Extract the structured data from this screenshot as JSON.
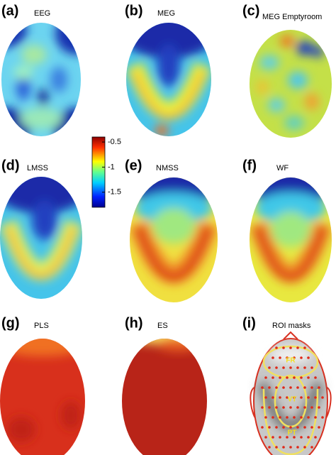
{
  "panels": [
    {
      "letter": "(a)",
      "title": "EEG"
    },
    {
      "letter": "(b)",
      "title": "MEG"
    },
    {
      "letter": "(c)",
      "title": "MEG Emptyroom"
    },
    {
      "letter": "(d)",
      "title": "LMSS"
    },
    {
      "letter": "(e)",
      "title": "NMSS"
    },
    {
      "letter": "(f)",
      "title": "WF"
    },
    {
      "letter": "(g)",
      "title": "PLS"
    },
    {
      "letter": "(h)",
      "title": "ES"
    },
    {
      "letter": "(i)",
      "title": "ROI masks"
    }
  ],
  "colorbar": {
    "lim": [
      -1.8,
      -0.4
    ],
    "ticks": [
      -0.5,
      -1,
      -1.5
    ]
  },
  "roi_labels": [
    "FR",
    "VT",
    "PT"
  ]
}
